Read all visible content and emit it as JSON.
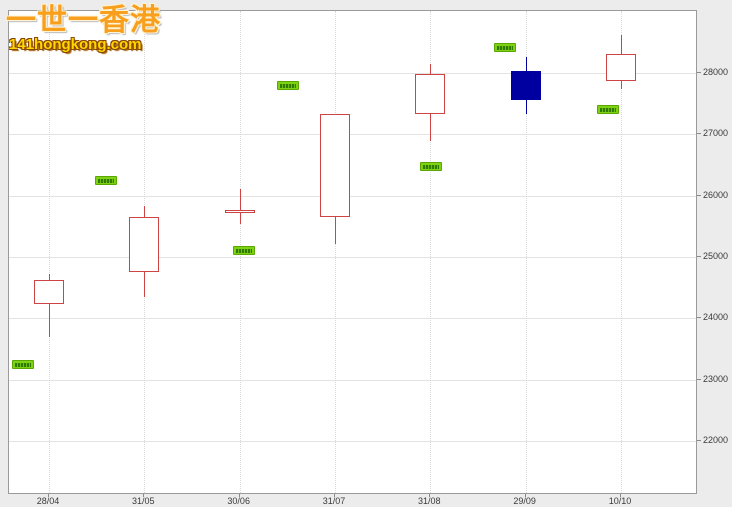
{
  "watermark": {
    "line1": "一世一香港",
    "line2": "141hongkong.com"
  },
  "chart_data": {
    "type": "candlestick",
    "title": "",
    "xlabel": "",
    "ylabel": "",
    "x_labels": [
      "28/04",
      "31/05",
      "30/06",
      "31/07",
      "31/08",
      "29/09",
      "10/10"
    ],
    "y_ticks": [
      28000,
      27000,
      26000,
      25000,
      24000,
      23000,
      22000
    ],
    "y_axis_side": "right",
    "ylim": [
      21150,
      29010
    ],
    "grid": {
      "horizontal": "solid",
      "vertical": "dotted"
    },
    "legend": "none",
    "candles": [
      {
        "date": "28/04",
        "open": 24230,
        "high": 24720,
        "low": 23690,
        "close": 24620,
        "direction": "up"
      },
      {
        "date": "31/05",
        "open": 24750,
        "high": 25830,
        "low": 24350,
        "close": 25650,
        "direction": "up"
      },
      {
        "date": "30/06",
        "open": 25720,
        "high": 26110,
        "low": 25540,
        "close": 25770,
        "direction": "up"
      },
      {
        "date": "31/07",
        "open": 25650,
        "high": 27330,
        "low": 25210,
        "close": 27330,
        "direction": "up"
      },
      {
        "date": "31/08",
        "open": 27330,
        "high": 28150,
        "low": 26890,
        "close": 27980,
        "direction": "up"
      },
      {
        "date": "29/09",
        "open": 28030,
        "high": 28260,
        "low": 27330,
        "close": 27560,
        "direction": "down"
      },
      {
        "date": "10/10",
        "open": 27870,
        "high": 28620,
        "low": 27740,
        "close": 28310,
        "direction": "up"
      }
    ],
    "markers": [
      {
        "x_index": -0.27,
        "price": 23250,
        "text": ""
      },
      {
        "x_index": 0.6,
        "price": 26240,
        "text": ""
      },
      {
        "x_index": 2.05,
        "price": 25100,
        "text": ""
      },
      {
        "x_index": 2.51,
        "price": 27800,
        "text": ""
      },
      {
        "x_index": 4.01,
        "price": 26470,
        "text": ""
      },
      {
        "x_index": 4.78,
        "price": 28420,
        "text": ""
      },
      {
        "x_index": 5.86,
        "price": 27410,
        "text": ""
      }
    ],
    "marker_note": "small bright-green price flags with tiny dark-green text too small to read",
    "colors": {
      "up_outline": "#cc4444",
      "down_fill": "#0000a0",
      "marker_fill": "#7fd212",
      "background_outer": "#ececec",
      "background_plot": "#ffffff",
      "plot_border": "#9a9a9a"
    }
  }
}
